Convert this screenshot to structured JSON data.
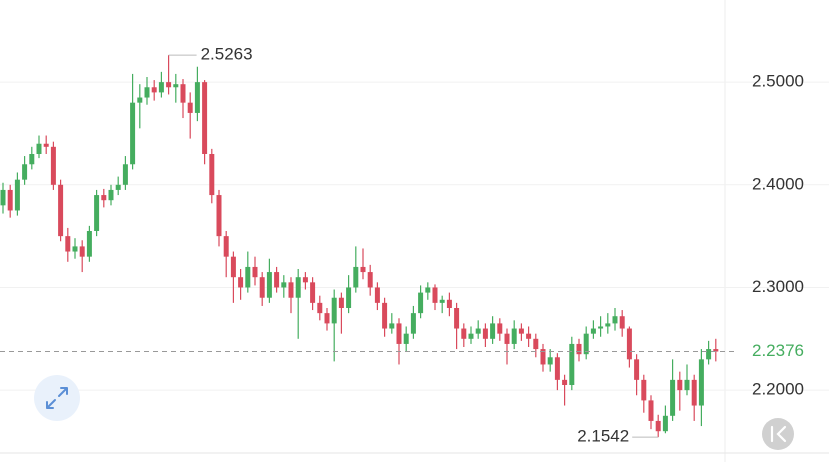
{
  "chart_data": {
    "type": "candlestick",
    "open": [
      2.38,
      2.395,
      2.375,
      2.405,
      2.42,
      2.43,
      2.44,
      2.437,
      2.4,
      2.35,
      2.335,
      2.34,
      2.33,
      2.355,
      2.39,
      2.385,
      2.395,
      2.4,
      2.42,
      2.48,
      2.485,
      2.495,
      2.49,
      2.5,
      2.495,
      2.498,
      2.48,
      2.47,
      2.5,
      2.43,
      2.39,
      2.35,
      2.33,
      2.31,
      2.3,
      2.32,
      2.31,
      2.29,
      2.315,
      2.3,
      2.305,
      2.29,
      2.31,
      2.305,
      2.285,
      2.275,
      2.265,
      2.29,
      2.28,
      2.3,
      2.32,
      2.315,
      2.3,
      2.285,
      2.26,
      2.265,
      2.245,
      2.255,
      2.275,
      2.295,
      2.3,
      2.285,
      2.288,
      2.28,
      2.26,
      2.25,
      2.255,
      2.26,
      2.25,
      2.265,
      2.255,
      2.245,
      2.26,
      2.255,
      2.25,
      2.24,
      2.225,
      2.232,
      2.21,
      2.205,
      2.245,
      2.235,
      2.255,
      2.26,
      2.262,
      2.265,
      2.272,
      2.26,
      2.23,
      2.21,
      2.19,
      2.17,
      2.16,
      2.175,
      2.21,
      2.2,
      2.21,
      2.185,
      2.23,
      2.24
    ],
    "high": [
      2.402,
      2.4,
      2.412,
      2.428,
      2.437,
      2.448,
      2.448,
      2.442,
      2.405,
      2.358,
      2.348,
      2.346,
      2.36,
      2.395,
      2.396,
      2.4,
      2.408,
      2.428,
      2.508,
      2.498,
      2.505,
      2.502,
      2.51,
      2.5263,
      2.508,
      2.503,
      2.49,
      2.515,
      2.502,
      2.435,
      2.395,
      2.355,
      2.335,
      2.318,
      2.335,
      2.33,
      2.315,
      2.328,
      2.32,
      2.312,
      2.31,
      2.318,
      2.315,
      2.31,
      2.292,
      2.28,
      2.298,
      2.295,
      2.312,
      2.34,
      2.338,
      2.322,
      2.305,
      2.29,
      2.275,
      2.27,
      2.262,
      2.282,
      2.302,
      2.305,
      2.303,
      2.292,
      2.295,
      2.285,
      2.265,
      2.262,
      2.268,
      2.265,
      2.272,
      2.27,
      2.26,
      2.268,
      2.265,
      2.262,
      2.255,
      2.245,
      2.24,
      2.236,
      2.215,
      2.252,
      2.25,
      2.262,
      2.268,
      2.272,
      2.275,
      2.28,
      2.278,
      2.262,
      2.235,
      2.215,
      2.195,
      2.176,
      2.185,
      2.23,
      2.218,
      2.225,
      2.215,
      2.24,
      2.248,
      2.25
    ],
    "low": [
      2.372,
      2.368,
      2.37,
      2.4,
      2.415,
      2.426,
      2.43,
      2.395,
      2.345,
      2.325,
      2.328,
      2.315,
      2.325,
      2.35,
      2.378,
      2.38,
      2.39,
      2.395,
      2.415,
      2.455,
      2.478,
      2.482,
      2.485,
      2.488,
      2.48,
      2.465,
      2.445,
      2.462,
      2.42,
      2.382,
      2.34,
      2.31,
      2.285,
      2.288,
      2.295,
      2.302,
      2.282,
      2.285,
      2.295,
      2.29,
      2.275,
      2.25,
      2.298,
      2.278,
      2.268,
      2.258,
      2.228,
      2.255,
      2.275,
      2.295,
      2.308,
      2.292,
      2.278,
      2.252,
      2.255,
      2.225,
      2.238,
      2.25,
      2.27,
      2.288,
      2.278,
      2.275,
      2.272,
      2.24,
      2.242,
      2.245,
      2.25,
      2.242,
      2.245,
      2.248,
      2.225,
      2.24,
      2.248,
      2.242,
      2.232,
      2.218,
      2.218,
      2.2,
      2.185,
      2.2,
      2.228,
      2.23,
      2.25,
      2.252,
      2.255,
      2.258,
      2.252,
      2.222,
      2.195,
      2.178,
      2.162,
      2.1542,
      2.158,
      2.17,
      2.18,
      2.195,
      2.17,
      2.165,
      2.225,
      2.228
    ],
    "close": [
      2.395,
      2.375,
      2.405,
      2.42,
      2.43,
      2.44,
      2.437,
      2.4,
      2.35,
      2.335,
      2.34,
      2.33,
      2.355,
      2.39,
      2.385,
      2.395,
      2.4,
      2.42,
      2.48,
      2.485,
      2.495,
      2.49,
      2.5,
      2.495,
      2.498,
      2.48,
      2.47,
      2.5,
      2.43,
      2.39,
      2.35,
      2.33,
      2.31,
      2.3,
      2.32,
      2.31,
      2.29,
      2.315,
      2.3,
      2.305,
      2.29,
      2.31,
      2.305,
      2.285,
      2.275,
      2.265,
      2.29,
      2.28,
      2.3,
      2.32,
      2.315,
      2.3,
      2.285,
      2.26,
      2.265,
      2.245,
      2.255,
      2.275,
      2.295,
      2.3,
      2.285,
      2.288,
      2.28,
      2.26,
      2.25,
      2.255,
      2.26,
      2.25,
      2.265,
      2.255,
      2.245,
      2.26,
      2.255,
      2.25,
      2.24,
      2.225,
      2.232,
      2.21,
      2.205,
      2.245,
      2.235,
      2.255,
      2.26,
      2.262,
      2.265,
      2.272,
      2.26,
      2.23,
      2.21,
      2.19,
      2.17,
      2.16,
      2.175,
      2.21,
      2.2,
      2.21,
      2.185,
      2.23,
      2.24,
      2.2376
    ],
    "up_color": "#45ad5f",
    "down_color": "#d94a5c",
    "ylim": [
      2.13,
      2.58
    ],
    "yticks": [
      {
        "value": 2.2,
        "label": "2.2000"
      },
      {
        "value": 2.3,
        "label": "2.3000"
      },
      {
        "value": 2.4,
        "label": "2.4000"
      },
      {
        "value": 2.5,
        "label": "2.5000"
      }
    ],
    "grid": true
  }
}
